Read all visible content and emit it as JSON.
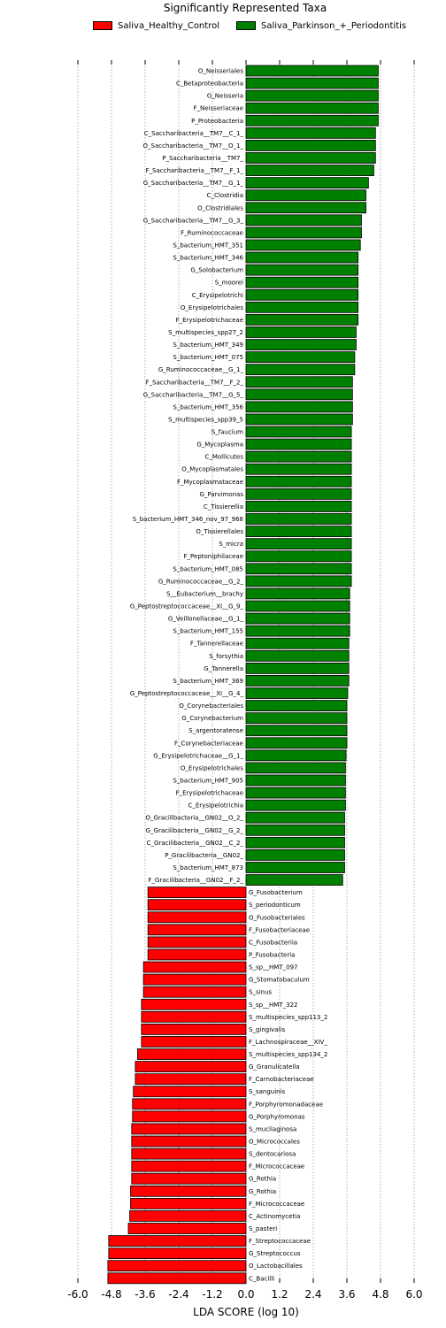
{
  "chart_data": {
    "type": "bar",
    "orientation": "horizontal",
    "title": "Significantly Represented Taxa",
    "xlabel": "LDA SCORE (log 10)",
    "xlim": [
      -6.0,
      6.0
    ],
    "xticks": [
      "-6.0",
      "-4.8",
      "-3.6",
      "-2.4",
      "-1.2",
      "0.0",
      "1.2",
      "2.4",
      "3.6",
      "4.8",
      "6.0"
    ],
    "grid": "vertical dotted",
    "legend": "top-center",
    "series": [
      {
        "name": "Saliva_Healthy_Control",
        "color": "#ff0000"
      },
      {
        "name": "Saliva_Parkinson_+_Periodontitis",
        "color": "#008000"
      }
    ],
    "bars": [
      {
        "label": "O_Neisseriales",
        "value": 4.72,
        "group": 1
      },
      {
        "label": "C_Betaproteobacteria",
        "value": 4.72,
        "group": 1
      },
      {
        "label": "G_Neisseria",
        "value": 4.72,
        "group": 1
      },
      {
        "label": "F_Neisseriaceae",
        "value": 4.72,
        "group": 1
      },
      {
        "label": "P_Proteobacteria",
        "value": 4.72,
        "group": 1
      },
      {
        "label": "C_Saccharibacteria__TM7__C_1_",
        "value": 4.62,
        "group": 1
      },
      {
        "label": "O_Saccharibacteria__TM7__O_1_",
        "value": 4.62,
        "group": 1
      },
      {
        "label": "P_Saccharibacteria__TM7_",
        "value": 4.62,
        "group": 1
      },
      {
        "label": "F_Saccharibacteria__TM7__F_1_",
        "value": 4.56,
        "group": 1
      },
      {
        "label": "G_Saccharibacteria__TM7__G_1_",
        "value": 4.37,
        "group": 1
      },
      {
        "label": "C_Clostridia",
        "value": 4.28,
        "group": 1
      },
      {
        "label": "O_Clostridiales",
        "value": 4.28,
        "group": 1
      },
      {
        "label": "G_Saccharibacteria__TM7__G_3_",
        "value": 4.12,
        "group": 1
      },
      {
        "label": "F_Ruminococcaceae",
        "value": 4.12,
        "group": 1
      },
      {
        "label": "S_bacterium_HMT_351",
        "value": 4.08,
        "group": 1
      },
      {
        "label": "S_bacterium_HMT_346",
        "value": 4.0,
        "group": 1
      },
      {
        "label": "G_Solobacterium",
        "value": 4.0,
        "group": 1
      },
      {
        "label": "S_moorei",
        "value": 4.0,
        "group": 1
      },
      {
        "label": "C_Erysipelotrichi",
        "value": 4.0,
        "group": 1
      },
      {
        "label": "O_Erysipelotrichales",
        "value": 4.0,
        "group": 1
      },
      {
        "label": "F_Erysipelotrichaceae",
        "value": 4.0,
        "group": 1
      },
      {
        "label": "S_multispecies_spp27_2",
        "value": 3.93,
        "group": 1
      },
      {
        "label": "S_bacterium_HMT_349",
        "value": 3.93,
        "group": 1
      },
      {
        "label": "S_bacterium_HMT_075",
        "value": 3.88,
        "group": 1
      },
      {
        "label": "G_Ruminococcaceae__G_1_",
        "value": 3.88,
        "group": 1
      },
      {
        "label": "F_Saccharibacteria__TM7__F_2_",
        "value": 3.8,
        "group": 1
      },
      {
        "label": "G_Saccharibacteria__TM7__G_5_",
        "value": 3.8,
        "group": 1
      },
      {
        "label": "S_bacterium_HMT_356",
        "value": 3.8,
        "group": 1
      },
      {
        "label": "S_multispecies_spp39_5",
        "value": 3.8,
        "group": 1
      },
      {
        "label": "S_faucium",
        "value": 3.76,
        "group": 1
      },
      {
        "label": "G_Mycoplasma",
        "value": 3.76,
        "group": 1
      },
      {
        "label": "C_Mollicutes",
        "value": 3.76,
        "group": 1
      },
      {
        "label": "O_Mycoplasmatales",
        "value": 3.76,
        "group": 1
      },
      {
        "label": "F_Mycoplasmataceae",
        "value": 3.76,
        "group": 1
      },
      {
        "label": "G_Parvimonas",
        "value": 3.76,
        "group": 1
      },
      {
        "label": "C_Tissierellia",
        "value": 3.76,
        "group": 1
      },
      {
        "label": "S_bacterium_HMT_346_nov_97_968",
        "value": 3.76,
        "group": 1
      },
      {
        "label": "O_Tissierellales",
        "value": 3.76,
        "group": 1
      },
      {
        "label": "S_micra",
        "value": 3.76,
        "group": 1
      },
      {
        "label": "F_Peptoniphilaceae",
        "value": 3.76,
        "group": 1
      },
      {
        "label": "S_bacterium_HMT_085",
        "value": 3.76,
        "group": 1
      },
      {
        "label": "G_Ruminococcaceae__G_2_",
        "value": 3.76,
        "group": 1
      },
      {
        "label": "S__Eubacterium__brachy",
        "value": 3.7,
        "group": 1
      },
      {
        "label": "G_Peptostreptococcaceae__XI__G_9_",
        "value": 3.7,
        "group": 1
      },
      {
        "label": "G_Veillonellaceae__G_1_",
        "value": 3.7,
        "group": 1
      },
      {
        "label": "S_bacterium_HMT_155",
        "value": 3.7,
        "group": 1
      },
      {
        "label": "F_Tannerellaceae",
        "value": 3.67,
        "group": 1
      },
      {
        "label": "S_forsythia",
        "value": 3.67,
        "group": 1
      },
      {
        "label": "G_Tannerella",
        "value": 3.67,
        "group": 1
      },
      {
        "label": "S_bacterium_HMT_369",
        "value": 3.67,
        "group": 1
      },
      {
        "label": "G_Peptostreptococcaceae__XI__G_4_",
        "value": 3.63,
        "group": 1
      },
      {
        "label": "O_Corynebacteriales",
        "value": 3.6,
        "group": 1
      },
      {
        "label": "G_Corynebacterium",
        "value": 3.6,
        "group": 1
      },
      {
        "label": "S_argentoratense",
        "value": 3.6,
        "group": 1
      },
      {
        "label": "F_Corynebacteriaceae",
        "value": 3.6,
        "group": 1
      },
      {
        "label": "G_Erysipelotrichaceae__G_1_",
        "value": 3.57,
        "group": 1
      },
      {
        "label": "O_Erysipelotrichales",
        "value": 3.55,
        "group": 1
      },
      {
        "label": "S_bacterium_HMT_905",
        "value": 3.55,
        "group": 1
      },
      {
        "label": "F_Erysipelotrichaceae",
        "value": 3.55,
        "group": 1
      },
      {
        "label": "C_Erysipelotrichia",
        "value": 3.55,
        "group": 1
      },
      {
        "label": "O_Gracilibacteria__GN02__O_2_",
        "value": 3.52,
        "group": 1
      },
      {
        "label": "G_Gracilibacteria__GN02__G_2_",
        "value": 3.52,
        "group": 1
      },
      {
        "label": "C_Gracilibacteria__GN02__C_2_",
        "value": 3.52,
        "group": 1
      },
      {
        "label": "P_Gracilibacteria__GN02_",
        "value": 3.52,
        "group": 1
      },
      {
        "label": "S_bacterium_HMT_873",
        "value": 3.52,
        "group": 1
      },
      {
        "label": "F_Gracilibacteria__GN02__F_2_",
        "value": 3.45,
        "group": 1
      },
      {
        "label": "G_Fusobacterium",
        "value": -3.5,
        "group": 0
      },
      {
        "label": "S_periodonticum",
        "value": -3.5,
        "group": 0
      },
      {
        "label": "O_Fusobacteriales",
        "value": -3.5,
        "group": 0
      },
      {
        "label": "F_Fusobacteriaceae",
        "value": -3.5,
        "group": 0
      },
      {
        "label": "C_Fusobacteriia",
        "value": -3.5,
        "group": 0
      },
      {
        "label": "P_Fusobacteria",
        "value": -3.5,
        "group": 0
      },
      {
        "label": "S_sp__HMT_097",
        "value": -3.66,
        "group": 0
      },
      {
        "label": "G_Stomatobaculum",
        "value": -3.66,
        "group": 0
      },
      {
        "label": "S_sinus",
        "value": -3.66,
        "group": 0
      },
      {
        "label": "S_sp__HMT_322",
        "value": -3.73,
        "group": 0
      },
      {
        "label": "S_multispecies_spp113_2",
        "value": -3.73,
        "group": 0
      },
      {
        "label": "S_gingivalis",
        "value": -3.73,
        "group": 0
      },
      {
        "label": "F_Lachnospiraceae__XIV_",
        "value": -3.73,
        "group": 0
      },
      {
        "label": "S_multispecies_spp134_2",
        "value": -3.87,
        "group": 0
      },
      {
        "label": "G_Granulicatella",
        "value": -3.95,
        "group": 0
      },
      {
        "label": "F_Carnobacteriaceae",
        "value": -3.95,
        "group": 0
      },
      {
        "label": "S_sanguinis",
        "value": -4.02,
        "group": 0
      },
      {
        "label": "F_Porphyromonadaceae",
        "value": -4.05,
        "group": 0
      },
      {
        "label": "G_Porphyromonas",
        "value": -4.05,
        "group": 0
      },
      {
        "label": "S_mucilaginosa",
        "value": -4.08,
        "group": 0
      },
      {
        "label": "O_Micrococcales",
        "value": -4.08,
        "group": 0
      },
      {
        "label": "S_dentocariosa",
        "value": -4.08,
        "group": 0
      },
      {
        "label": "F_Micrococcaceae",
        "value": -4.08,
        "group": 0
      },
      {
        "label": "G_Rothia",
        "value": -4.08,
        "group": 0
      },
      {
        "label": "G_Rothia",
        "value": -4.12,
        "group": 0
      },
      {
        "label": "F_Micrococcaceae",
        "value": -4.12,
        "group": 0
      },
      {
        "label": "C_Actinomycetia",
        "value": -4.15,
        "group": 0
      },
      {
        "label": "S_pasteri",
        "value": -4.2,
        "group": 0
      },
      {
        "label": "F_Streptococcaceae",
        "value": -4.9,
        "group": 0
      },
      {
        "label": "G_Streptococcus",
        "value": -4.9,
        "group": 0
      },
      {
        "label": "O_Lactobacillales",
        "value": -4.93,
        "group": 0
      },
      {
        "label": "C_Bacilli",
        "value": -4.93,
        "group": 0
      }
    ]
  }
}
